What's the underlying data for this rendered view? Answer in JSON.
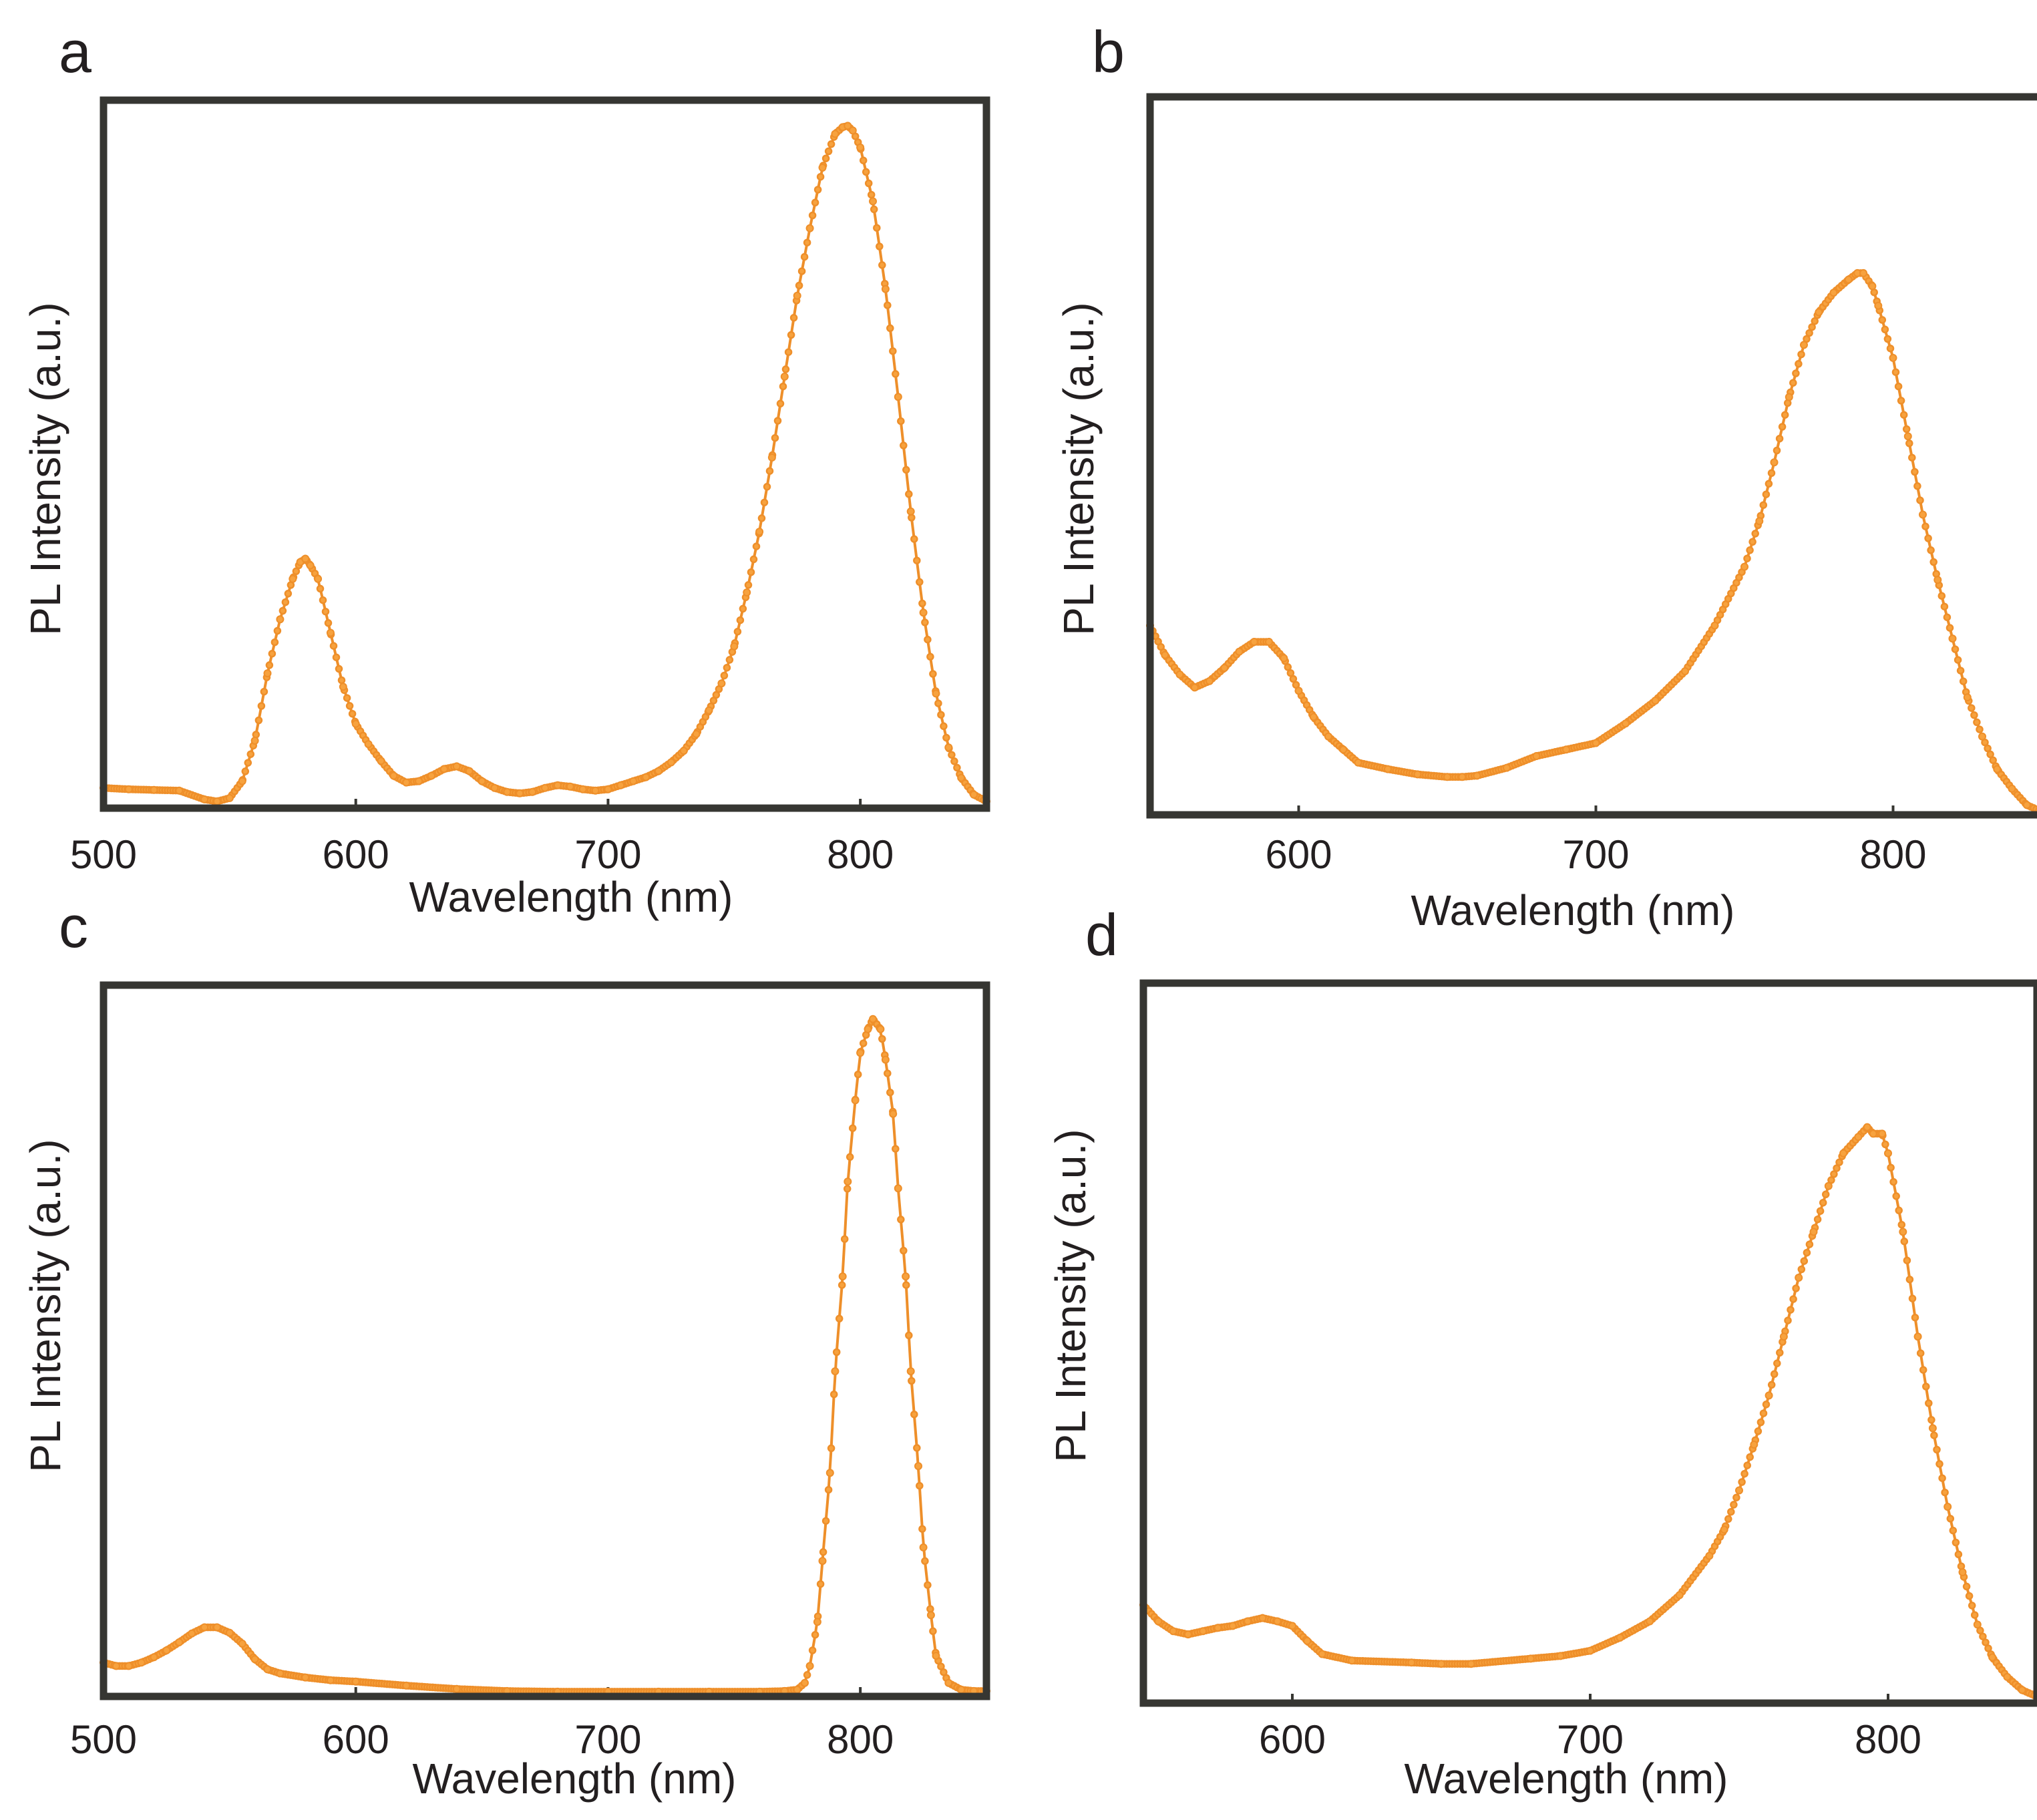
{
  "figure": {
    "series_color": "#f7a23e",
    "series_stroke": "#ee8f2a"
  },
  "chart_data": [
    {
      "panel": "a",
      "type": "line",
      "title": "",
      "xlabel": "Wavelength (nm)",
      "ylabel": "PL Intensity (a.u.)",
      "xlim": [
        500,
        850
      ],
      "ylim": [
        0,
        1.05
      ],
      "xticks": [
        500,
        600,
        700,
        800
      ],
      "xticklabels": [
        "500",
        "600",
        "700",
        "800"
      ],
      "grid": false,
      "legend": "none",
      "x": [
        500,
        510,
        520,
        530,
        540,
        545,
        550,
        555,
        560,
        565,
        570,
        575,
        578,
        580,
        582,
        585,
        590,
        595,
        600,
        605,
        610,
        615,
        620,
        625,
        630,
        635,
        640,
        645,
        650,
        655,
        660,
        665,
        670,
        675,
        680,
        685,
        690,
        695,
        700,
        705,
        710,
        715,
        720,
        725,
        730,
        735,
        740,
        745,
        750,
        755,
        760,
        765,
        770,
        775,
        780,
        785,
        790,
        793,
        795,
        797,
        800,
        805,
        810,
        815,
        820,
        825,
        830,
        835,
        840,
        845,
        850
      ],
      "y": [
        0.03,
        0.028,
        0.027,
        0.026,
        0.013,
        0.01,
        0.015,
        0.04,
        0.1,
        0.2,
        0.28,
        0.34,
        0.365,
        0.37,
        0.36,
        0.34,
        0.26,
        0.18,
        0.125,
        0.095,
        0.07,
        0.048,
        0.038,
        0.04,
        0.048,
        0.058,
        0.062,
        0.055,
        0.04,
        0.03,
        0.024,
        0.022,
        0.024,
        0.03,
        0.034,
        0.032,
        0.028,
        0.026,
        0.028,
        0.034,
        0.04,
        0.046,
        0.055,
        0.068,
        0.085,
        0.11,
        0.145,
        0.185,
        0.24,
        0.32,
        0.41,
        0.52,
        0.64,
        0.76,
        0.86,
        0.95,
        1.0,
        1.01,
        1.012,
        1.005,
        0.98,
        0.9,
        0.77,
        0.61,
        0.44,
        0.29,
        0.17,
        0.09,
        0.045,
        0.02,
        0.01
      ]
    },
    {
      "panel": "b",
      "type": "line",
      "title": "",
      "xlabel": "Wavelength (nm)",
      "ylabel": "PL Intensity (a.u.)",
      "xlim": [
        550,
        850
      ],
      "ylim": [
        0,
        1.1
      ],
      "xticks": [
        600,
        700,
        800
      ],
      "xticklabels": [
        "600",
        "700",
        "800"
      ],
      "grid": false,
      "legend": "none",
      "x": [
        550,
        555,
        560,
        565,
        570,
        575,
        580,
        585,
        590,
        595,
        600,
        605,
        610,
        615,
        620,
        630,
        640,
        650,
        655,
        660,
        670,
        680,
        690,
        700,
        710,
        720,
        730,
        740,
        750,
        755,
        760,
        765,
        770,
        775,
        780,
        785,
        788,
        790,
        793,
        795,
        800,
        805,
        810,
        815,
        820,
        825,
        830,
        835,
        840,
        845,
        850
      ],
      "y": [
        0.29,
        0.245,
        0.215,
        0.195,
        0.205,
        0.225,
        0.25,
        0.265,
        0.265,
        0.24,
        0.19,
        0.15,
        0.12,
        0.1,
        0.08,
        0.07,
        0.062,
        0.058,
        0.058,
        0.06,
        0.072,
        0.09,
        0.1,
        0.11,
        0.14,
        0.175,
        0.22,
        0.29,
        0.38,
        0.45,
        0.54,
        0.64,
        0.72,
        0.77,
        0.8,
        0.82,
        0.83,
        0.83,
        0.81,
        0.78,
        0.7,
        0.58,
        0.46,
        0.36,
        0.27,
        0.18,
        0.12,
        0.07,
        0.04,
        0.015,
        0.005
      ]
    },
    {
      "panel": "c",
      "type": "line",
      "title": "",
      "xlabel": "Wavelength (nm)",
      "ylabel": "PL Intensity (a.u.)",
      "xlim": [
        500,
        850
      ],
      "ylim": [
        0,
        1.05
      ],
      "xticks": [
        500,
        600,
        700,
        800
      ],
      "xticklabels": [
        "500",
        "600",
        "700",
        "800"
      ],
      "grid": false,
      "legend": "none",
      "x": [
        500,
        505,
        510,
        515,
        520,
        525,
        530,
        535,
        540,
        545,
        550,
        555,
        560,
        565,
        570,
        580,
        590,
        600,
        620,
        640,
        660,
        680,
        700,
        720,
        740,
        760,
        770,
        775,
        778,
        780,
        783,
        785,
        788,
        790,
        793,
        795,
        798,
        800,
        803,
        805,
        808,
        810,
        813,
        815,
        818,
        820,
        823,
        825,
        828,
        830,
        835,
        840,
        845,
        850
      ],
      "y": [
        0.05,
        0.045,
        0.045,
        0.05,
        0.058,
        0.068,
        0.08,
        0.093,
        0.102,
        0.102,
        0.094,
        0.078,
        0.055,
        0.04,
        0.034,
        0.028,
        0.024,
        0.022,
        0.016,
        0.011,
        0.008,
        0.007,
        0.007,
        0.007,
        0.007,
        0.007,
        0.008,
        0.01,
        0.02,
        0.045,
        0.11,
        0.2,
        0.33,
        0.48,
        0.62,
        0.76,
        0.88,
        0.95,
        0.985,
        1.0,
        0.985,
        0.94,
        0.86,
        0.75,
        0.62,
        0.48,
        0.34,
        0.22,
        0.12,
        0.06,
        0.02,
        0.01,
        0.008,
        0.008
      ]
    },
    {
      "panel": "d",
      "type": "line",
      "title": "",
      "xlabel": "Wavelength (nm)",
      "ylabel": "PL Intensity (a.u.)",
      "xlim": [
        550,
        850
      ],
      "ylim": [
        0,
        1.1
      ],
      "xticks": [
        600,
        700,
        800
      ],
      "xticklabels": [
        "600",
        "700",
        "800"
      ],
      "grid": false,
      "legend": "none",
      "x": [
        550,
        555,
        560,
        565,
        570,
        575,
        580,
        585,
        590,
        595,
        600,
        605,
        610,
        620,
        640,
        650,
        660,
        680,
        690,
        700,
        710,
        720,
        730,
        740,
        745,
        750,
        755,
        760,
        765,
        770,
        775,
        780,
        785,
        790,
        793,
        795,
        798,
        800,
        805,
        810,
        815,
        820,
        825,
        830,
        835,
        840,
        845,
        850
      ],
      "y": [
        0.15,
        0.125,
        0.11,
        0.105,
        0.11,
        0.115,
        0.118,
        0.125,
        0.13,
        0.125,
        0.118,
        0.095,
        0.075,
        0.065,
        0.062,
        0.06,
        0.06,
        0.068,
        0.072,
        0.08,
        0.1,
        0.125,
        0.165,
        0.225,
        0.265,
        0.325,
        0.395,
        0.47,
        0.56,
        0.65,
        0.72,
        0.79,
        0.84,
        0.865,
        0.88,
        0.87,
        0.87,
        0.84,
        0.72,
        0.56,
        0.42,
        0.3,
        0.2,
        0.12,
        0.07,
        0.04,
        0.02,
        0.01
      ]
    }
  ]
}
